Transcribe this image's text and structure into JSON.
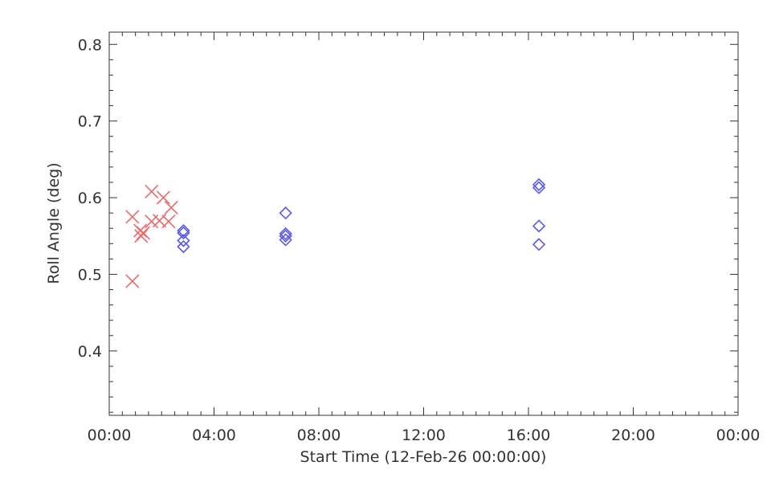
{
  "chart_data": {
    "type": "scatter",
    "title": "",
    "xlabel": "Start Time (12-Feb-26 00:00:00)",
    "ylabel": "Roll Angle (deg)",
    "x_unit": "hours",
    "xlim": [
      0,
      24
    ],
    "ylim": [
      0.316,
      0.816
    ],
    "x_ticks": [
      {
        "value": 0,
        "label": "00:00"
      },
      {
        "value": 4,
        "label": "04:00"
      },
      {
        "value": 8,
        "label": "08:00"
      },
      {
        "value": 12,
        "label": "12:00"
      },
      {
        "value": 16,
        "label": "16:00"
      },
      {
        "value": 20,
        "label": "20:00"
      },
      {
        "value": 24,
        "label": "00:00"
      }
    ],
    "y_ticks": [
      {
        "value": 0.4,
        "label": "0.4"
      },
      {
        "value": 0.5,
        "label": "0.5"
      },
      {
        "value": 0.6,
        "label": "0.6"
      },
      {
        "value": 0.7,
        "label": "0.7"
      },
      {
        "value": 0.8,
        "label": "0.8"
      }
    ],
    "grid": false,
    "series": [
      {
        "marker": "x",
        "color": "#f06868",
        "points": [
          {
            "x": "00:53",
            "y": 0.575
          },
          {
            "x": "00:53",
            "y": 0.491
          },
          {
            "x": "01:11",
            "y": 0.557
          },
          {
            "x": "01:13",
            "y": 0.55
          },
          {
            "x": "01:18",
            "y": 0.554
          },
          {
            "x": "01:37",
            "y": 0.608
          },
          {
            "x": "01:37",
            "y": 0.569
          },
          {
            "x": "01:55",
            "y": 0.57
          },
          {
            "x": "02:04",
            "y": 0.6
          },
          {
            "x": "02:16",
            "y": 0.569
          },
          {
            "x": "02:22",
            "y": 0.587
          }
        ]
      },
      {
        "marker": "diamond",
        "color": "#5858f0",
        "points": [
          {
            "x": "02:50",
            "y": 0.557
          },
          {
            "x": "02:50",
            "y": 0.554
          },
          {
            "x": "02:50",
            "y": 0.544
          },
          {
            "x": "02:50",
            "y": 0.536
          },
          {
            "x": "06:44",
            "y": 0.58
          },
          {
            "x": "06:44",
            "y": 0.553
          },
          {
            "x": "06:44",
            "y": 0.55
          },
          {
            "x": "06:44",
            "y": 0.545
          },
          {
            "x": "16:24",
            "y": 0.617
          },
          {
            "x": "16:24",
            "y": 0.613
          },
          {
            "x": "16:24",
            "y": 0.563
          },
          {
            "x": "16:24",
            "y": 0.539
          }
        ]
      }
    ]
  }
}
